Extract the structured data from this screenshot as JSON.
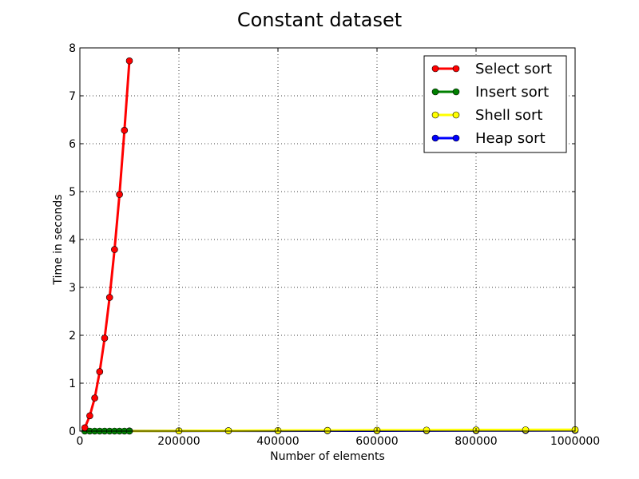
{
  "chart_data": {
    "type": "line",
    "title": "Constant dataset",
    "xlabel": "Number of elements",
    "ylabel": "Time in seconds",
    "xlim": [
      0,
      1000000
    ],
    "ylim": [
      0,
      8
    ],
    "xticks": [
      "0",
      "200000",
      "400000",
      "600000",
      "800000",
      "1000000"
    ],
    "xtick_values": [
      0,
      200000,
      400000,
      600000,
      800000,
      1000000
    ],
    "yticks": [
      "0",
      "1",
      "2",
      "3",
      "4",
      "5",
      "6",
      "7",
      "8"
    ],
    "ytick_values": [
      0,
      1,
      2,
      3,
      4,
      5,
      6,
      7,
      8
    ],
    "grid": true,
    "legend_position": "top-right",
    "series": [
      {
        "name": "Select sort",
        "color": "#ff0000",
        "x": [
          10000,
          20000,
          30000,
          40000,
          50000,
          60000,
          70000,
          80000,
          90000,
          100000
        ],
        "y": [
          0.07,
          0.32,
          0.69,
          1.24,
          1.94,
          2.79,
          3.79,
          4.94,
          6.28,
          7.73
        ]
      },
      {
        "name": "Insert sort",
        "color": "#008000",
        "x": [
          10000,
          20000,
          30000,
          40000,
          50000,
          60000,
          70000,
          80000,
          90000,
          100000
        ],
        "y": [
          0,
          0,
          0,
          0,
          0,
          0,
          0,
          0,
          0,
          0
        ]
      },
      {
        "name": "Shell sort",
        "color": "#ffff00",
        "x": [
          100000,
          200000,
          300000,
          400000,
          500000,
          600000,
          700000,
          800000,
          900000,
          1000000
        ],
        "y": [
          0.003,
          0.006,
          0.009,
          0.012,
          0.015,
          0.018,
          0.021,
          0.024,
          0.027,
          0.03
        ]
      },
      {
        "name": "Heap sort",
        "color": "#0000ff",
        "x": [
          100000,
          200000,
          300000,
          400000,
          500000,
          600000,
          700000,
          800000,
          900000,
          1000000
        ],
        "y": [
          0.004,
          0.005,
          0.006,
          0.007,
          0.008,
          0.009,
          0.01,
          0.012,
          0.013,
          0.015
        ]
      }
    ]
  }
}
